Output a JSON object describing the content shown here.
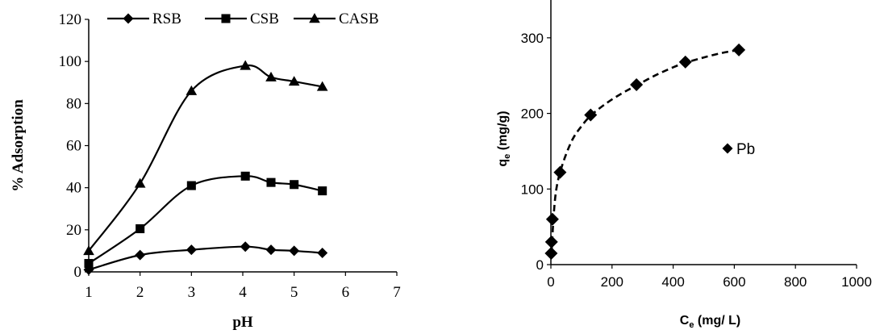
{
  "chart_data": [
    {
      "type": "line",
      "xlabel": "pH",
      "ylabel": "% Adsorption",
      "xlim": [
        1,
        7
      ],
      "ylim": [
        0,
        120
      ],
      "xticks": [
        1,
        2,
        3,
        4,
        5,
        6,
        7
      ],
      "yticks": [
        0,
        20,
        40,
        60,
        80,
        100,
        120
      ],
      "grid": false,
      "legend_position": "top",
      "series": [
        {
          "name": "RSB",
          "marker": "diamond",
          "x": [
            1,
            2,
            3,
            4.05,
            4.55,
            5,
            5.55
          ],
          "y": [
            1,
            8,
            10.5,
            12,
            10.5,
            10,
            9
          ]
        },
        {
          "name": "CSB",
          "marker": "square",
          "x": [
            1,
            2,
            3,
            4.05,
            4.55,
            5,
            5.55
          ],
          "y": [
            4,
            20.5,
            41,
            45.5,
            42.5,
            41.5,
            38.5
          ]
        },
        {
          "name": "CASB",
          "marker": "triangle",
          "x": [
            1,
            2,
            3,
            4.05,
            4.55,
            5,
            5.55
          ],
          "y": [
            10,
            42,
            86,
            98,
            92.5,
            90.5,
            88
          ]
        }
      ]
    },
    {
      "type": "scatter",
      "xlabel": "C",
      "xlabel_sub": "e",
      "xlabel_rest": " (mg/ L)",
      "ylabel": "q",
      "ylabel_sub": "e",
      "ylabel_rest": " (mg/g)",
      "xlim": [
        0,
        1000
      ],
      "ylim": [
        0,
        350
      ],
      "xticks": [
        0,
        200,
        400,
        600,
        800,
        1000
      ],
      "yticks": [
        0,
        100,
        200,
        300
      ],
      "grid": false,
      "legend_position": "center-right",
      "series": [
        {
          "name": "Pb",
          "marker": "diamond",
          "x": [
            1,
            2,
            5,
            30,
            130,
            280,
            440,
            615
          ],
          "y": [
            15,
            30,
            60,
            122,
            198,
            238,
            268,
            284
          ]
        }
      ],
      "fit_line": {
        "style": "dashed",
        "x": [
          2,
          10,
          20,
          40,
          70,
          100,
          130,
          180,
          230,
          280,
          340,
          400,
          440,
          500,
          560,
          615
        ],
        "y": [
          15,
          70,
          105,
          135,
          165,
          183,
          197,
          213,
          226,
          237,
          250,
          261,
          267,
          274,
          280,
          284
        ]
      }
    }
  ]
}
